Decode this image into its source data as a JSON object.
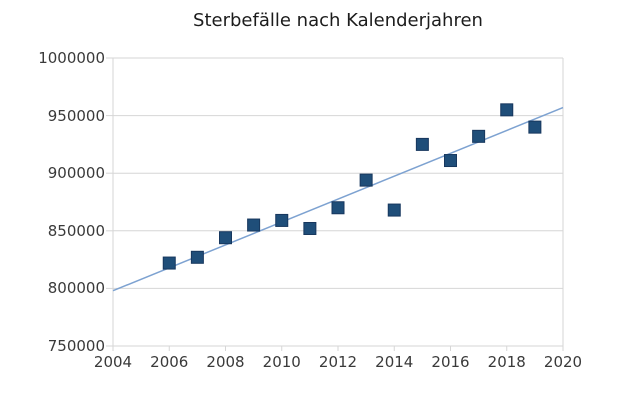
{
  "chart_data": {
    "type": "scatter",
    "title": "Sterbefälle nach Kalenderjahren",
    "xlabel": "",
    "ylabel": "",
    "x": [
      2006,
      2007,
      2008,
      2009,
      2010,
      2011,
      2012,
      2013,
      2014,
      2015,
      2016,
      2017,
      2018,
      2019
    ],
    "values": [
      822000,
      827000,
      844000,
      855000,
      859000,
      852000,
      870000,
      894000,
      868000,
      925000,
      911000,
      932000,
      955000,
      940000
    ],
    "trendline": {
      "x": [
        2004,
        2020
      ],
      "y": [
        798000,
        957000
      ]
    },
    "xlim": [
      2004,
      2020
    ],
    "ylim": [
      750000,
      1000000
    ],
    "xticks": [
      2004,
      2006,
      2008,
      2010,
      2012,
      2014,
      2016,
      2018,
      2020
    ],
    "yticks": [
      750000,
      800000,
      850000,
      900000,
      950000,
      1000000
    ],
    "grid": "horizontal",
    "legend": "none",
    "marker": "square",
    "marker_size_px": 12,
    "colors": {
      "marker_fill": "#1f4e79",
      "marker_stroke": "#17375e",
      "trendline": "#7da2d1",
      "grid": "#d6d6d6",
      "title_text": "#1c1c1c",
      "tick_text": "#3a3a3a",
      "background": "#ffffff"
    }
  }
}
